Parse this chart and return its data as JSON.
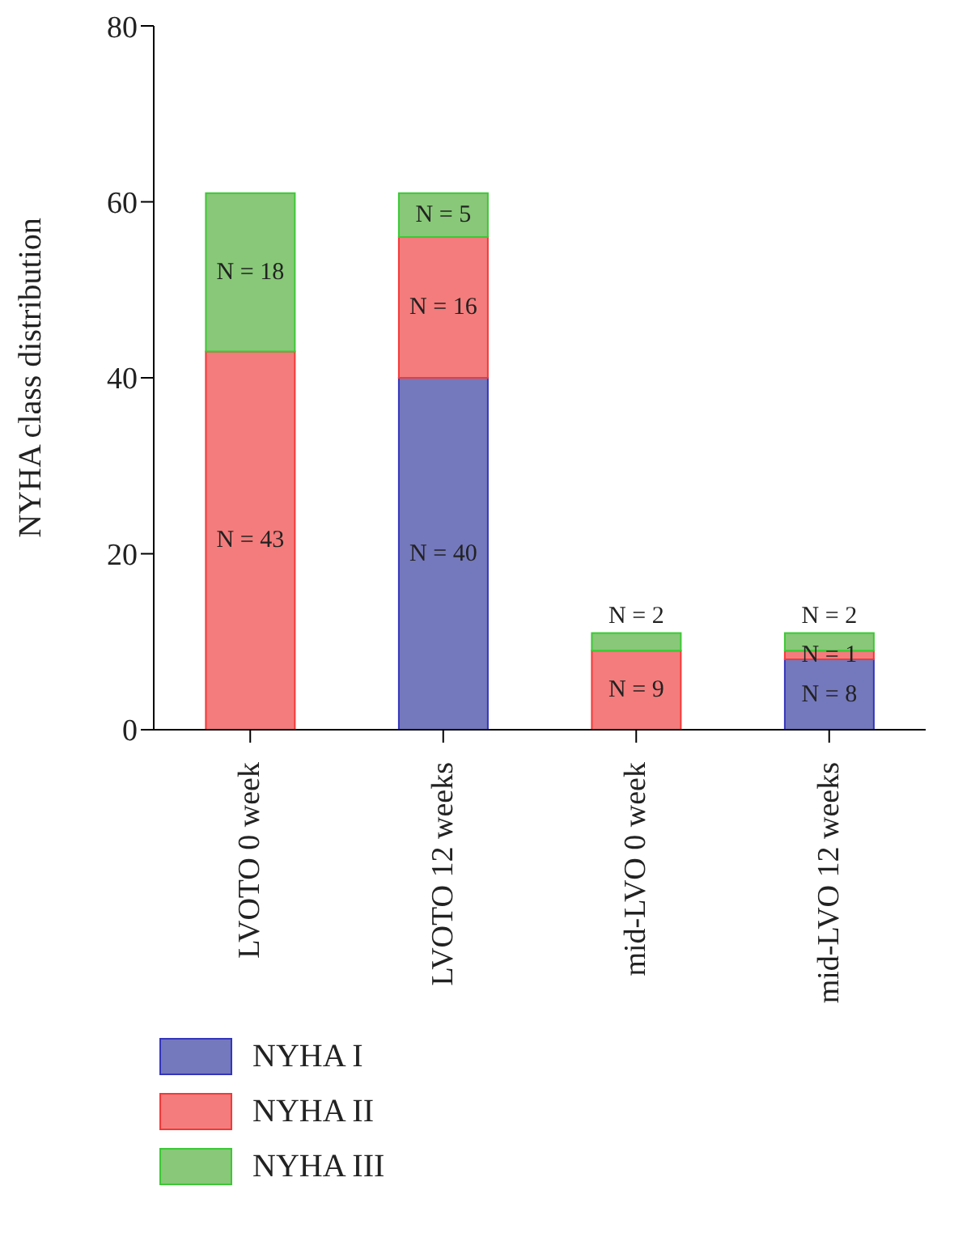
{
  "chart_data": {
    "type": "bar",
    "ylabel": "NYHA class distribution",
    "categories": [
      "LVOTO 0 week",
      "LVOTO 12 weeks",
      "mid-LVO 0 week",
      "mid-LVO 12 weeks"
    ],
    "stacked": true,
    "series": [
      {
        "name": "NYHA I",
        "color": "#7478bc",
        "values": [
          0,
          40,
          0,
          8
        ],
        "value_labels": [
          null,
          "N = 40",
          null,
          "N = 8"
        ]
      },
      {
        "name": "NYHA II",
        "color": "#f47c7c",
        "values": [
          43,
          16,
          9,
          1
        ],
        "value_labels": [
          "N = 43",
          "N = 16",
          "N = 9",
          "N = 1"
        ]
      },
      {
        "name": "NYHA III",
        "color": "#88c878",
        "values": [
          18,
          5,
          2,
          2
        ],
        "value_labels": [
          "N = 18",
          "N = 5",
          "N = 2",
          "N = 2"
        ]
      }
    ],
    "ylim": [
      0,
      80
    ],
    "yticks": [
      0,
      20,
      40,
      60,
      80
    ],
    "grid": false,
    "legend": "bottom left"
  }
}
